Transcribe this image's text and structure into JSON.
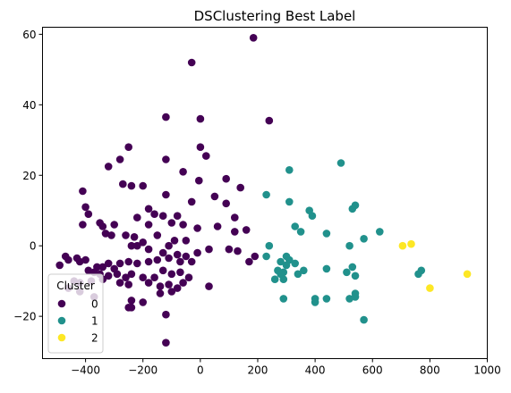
{
  "chart_data": {
    "type": "scatter",
    "title": "DSClustering Best Label",
    "xlabel": "",
    "ylabel": "",
    "xlim": [
      -550,
      1000
    ],
    "ylim": [
      -32,
      62
    ],
    "xticks": [
      -400,
      -200,
      0,
      200,
      400,
      600,
      800,
      1000
    ],
    "yticks": [
      -20,
      0,
      20,
      40,
      60
    ],
    "grid": false,
    "legend": {
      "title": "Cluster",
      "placement": "lower-left"
    },
    "colors": {
      "0": "#440154",
      "1": "#21918c",
      "2": "#fde725"
    },
    "series": [
      {
        "name": "0",
        "color": "#440154",
        "points": [
          [
            185,
            59
          ],
          [
            -30,
            52
          ],
          [
            240,
            35.5
          ],
          [
            -120,
            36.5
          ],
          [
            0,
            36
          ],
          [
            0,
            28
          ],
          [
            -250,
            28
          ],
          [
            20,
            25.5
          ],
          [
            -120,
            24.5
          ],
          [
            -280,
            24.5
          ],
          [
            -320,
            22.5
          ],
          [
            -60,
            21
          ],
          [
            90,
            19
          ],
          [
            -5,
            18.5
          ],
          [
            -270,
            17.5
          ],
          [
            -240,
            17
          ],
          [
            -200,
            17
          ],
          [
            140,
            16.5
          ],
          [
            -410,
            15.5
          ],
          [
            -120,
            14.5
          ],
          [
            50,
            14
          ],
          [
            -30,
            12.5
          ],
          [
            90,
            12
          ],
          [
            -400,
            11
          ],
          [
            -180,
            10.5
          ],
          [
            -390,
            9
          ],
          [
            -160,
            9
          ],
          [
            -220,
            8
          ],
          [
            -130,
            8.5
          ],
          [
            -80,
            8.5
          ],
          [
            120,
            8
          ],
          [
            -350,
            6.5
          ],
          [
            -340,
            5.5
          ],
          [
            -300,
            6
          ],
          [
            -180,
            6
          ],
          [
            -100,
            6.5
          ],
          [
            -60,
            6
          ],
          [
            -10,
            5
          ],
          [
            60,
            5.5
          ],
          [
            120,
            4
          ],
          [
            160,
            4.5
          ],
          [
            -410,
            6
          ],
          [
            -330,
            3.5
          ],
          [
            -310,
            3
          ],
          [
            -260,
            3
          ],
          [
            -230,
            2.5
          ],
          [
            -150,
            3
          ],
          [
            -200,
            1
          ],
          [
            -90,
            1.5
          ],
          [
            -50,
            1.5
          ],
          [
            -110,
            0
          ],
          [
            -10,
            -2
          ],
          [
            30,
            -1
          ],
          [
            100,
            -1
          ],
          [
            -240,
            0
          ],
          [
            -220,
            0
          ],
          [
            -180,
            -1
          ],
          [
            -130,
            -2
          ],
          [
            -80,
            -2.5
          ],
          [
            -50,
            -3
          ],
          [
            130,
            -1.5
          ],
          [
            190,
            -3
          ],
          [
            -470,
            -3
          ],
          [
            -460,
            -4
          ],
          [
            -420,
            -4.5
          ],
          [
            -400,
            -4
          ],
          [
            -430,
            -3.5
          ],
          [
            -490,
            -5.5
          ],
          [
            -360,
            -6
          ],
          [
            -340,
            -6
          ],
          [
            -320,
            -5
          ],
          [
            -300,
            -6.5
          ],
          [
            -280,
            -5
          ],
          [
            -250,
            -4.5
          ],
          [
            -220,
            -5
          ],
          [
            -180,
            -4.5
          ],
          [
            -150,
            -4
          ],
          [
            -110,
            -3.5
          ],
          [
            -70,
            -4.5
          ],
          [
            -30,
            -4.5
          ],
          [
            -390,
            -7
          ],
          [
            -370,
            -7.5
          ],
          [
            -350,
            -8
          ],
          [
            -320,
            -8.5
          ],
          [
            -290,
            -8
          ],
          [
            -260,
            -9
          ],
          [
            -240,
            -8
          ],
          [
            -200,
            -9
          ],
          [
            -160,
            -9
          ],
          [
            -130,
            -7
          ],
          [
            -100,
            -8
          ],
          [
            -70,
            -7.5
          ],
          [
            -40,
            -9
          ],
          [
            170,
            -4.5
          ],
          [
            -440,
            -10
          ],
          [
            -420,
            -10.5
          ],
          [
            -380,
            -10
          ],
          [
            -340,
            -9.5
          ],
          [
            -280,
            -10.5
          ],
          [
            -250,
            -11
          ],
          [
            -180,
            -10.5
          ],
          [
            -140,
            -11.5
          ],
          [
            -110,
            -11
          ],
          [
            -80,
            -12
          ],
          [
            -60,
            -10.5
          ],
          [
            30,
            -11.5
          ],
          [
            -460,
            -12
          ],
          [
            -420,
            -13
          ],
          [
            -370,
            -14.5
          ],
          [
            -240,
            -15.5
          ],
          [
            -200,
            -16
          ],
          [
            -140,
            -13.5
          ],
          [
            -100,
            -13
          ],
          [
            -250,
            -17.5
          ],
          [
            -240,
            -17.5
          ],
          [
            -120,
            -19.5
          ],
          [
            -120,
            -27.5
          ]
        ]
      },
      {
        "name": "1",
        "color": "#21918c",
        "points": [
          [
            490,
            23.5
          ],
          [
            310,
            21.5
          ],
          [
            230,
            14.5
          ],
          [
            310,
            12.5
          ],
          [
            540,
            11.5
          ],
          [
            530,
            10.5
          ],
          [
            380,
            10
          ],
          [
            390,
            8.5
          ],
          [
            330,
            5.5
          ],
          [
            350,
            4
          ],
          [
            440,
            3.5
          ],
          [
            625,
            4
          ],
          [
            570,
            2
          ],
          [
            240,
            0
          ],
          [
            520,
            0
          ],
          [
            230,
            -3
          ],
          [
            300,
            -3
          ],
          [
            310,
            -4
          ],
          [
            280,
            -4.5
          ],
          [
            330,
            -5
          ],
          [
            300,
            -5.5
          ],
          [
            530,
            -6
          ],
          [
            440,
            -6.5
          ],
          [
            270,
            -7
          ],
          [
            290,
            -7.5
          ],
          [
            360,
            -7
          ],
          [
            510,
            -7.5
          ],
          [
            770,
            -7
          ],
          [
            340,
            -8
          ],
          [
            280,
            -8
          ],
          [
            760,
            -8
          ],
          [
            540,
            -8.5
          ],
          [
            260,
            -9.5
          ],
          [
            290,
            -9.5
          ],
          [
            540,
            -13.5
          ],
          [
            400,
            -15
          ],
          [
            440,
            -15
          ],
          [
            520,
            -15
          ],
          [
            540,
            -14.5
          ],
          [
            290,
            -15
          ],
          [
            400,
            -16
          ],
          [
            570,
            -21
          ]
        ]
      },
      {
        "name": "2",
        "color": "#fde725",
        "points": [
          [
            705,
            0
          ],
          [
            735,
            0.5
          ],
          [
            800,
            -12
          ],
          [
            930,
            -8
          ]
        ]
      }
    ]
  }
}
